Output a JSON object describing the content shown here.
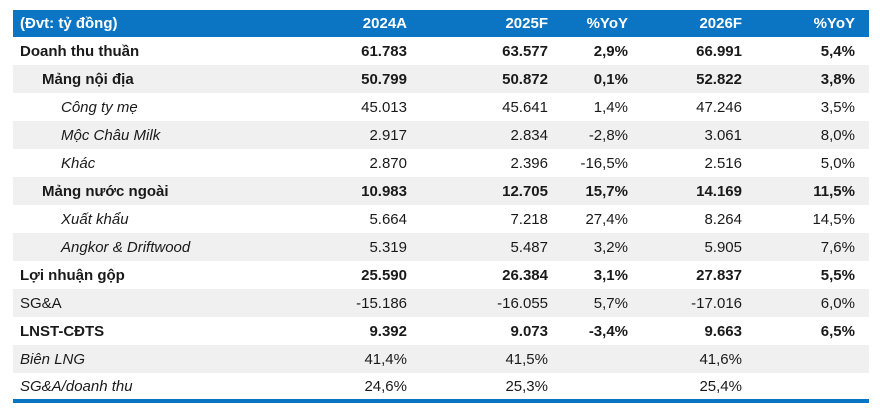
{
  "table": {
    "unit_label": "(Đvt: tỷ đồng)",
    "columns": [
      "2024A",
      "2025F",
      "%YoY",
      "2026F",
      "%YoY"
    ],
    "rows": [
      {
        "label": "Doanh thu thuần",
        "style": "bold",
        "indent": 0,
        "values": [
          "61.783",
          "63.577",
          "2,9%",
          "66.991",
          "5,4%"
        ]
      },
      {
        "label": "Mảng nội địa",
        "style": "bold",
        "indent": 1,
        "values": [
          "50.799",
          "50.872",
          "0,1%",
          "52.822",
          "3,8%"
        ]
      },
      {
        "label": "Công ty mẹ",
        "style": "italic",
        "indent": 2,
        "values": [
          "45.013",
          "45.641",
          "1,4%",
          "47.246",
          "3,5%"
        ]
      },
      {
        "label": "Mộc Châu Milk",
        "style": "italic",
        "indent": 2,
        "values": [
          "2.917",
          "2.834",
          "-2,8%",
          "3.061",
          "8,0%"
        ]
      },
      {
        "label": "Khác",
        "style": "italic",
        "indent": 2,
        "values": [
          "2.870",
          "2.396",
          "-16,5%",
          "2.516",
          "5,0%"
        ]
      },
      {
        "label": "Mảng nước ngoài",
        "style": "bold",
        "indent": 1,
        "values": [
          "10.983",
          "12.705",
          "15,7%",
          "14.169",
          "11,5%"
        ]
      },
      {
        "label": "Xuất khẩu",
        "style": "italic",
        "indent": 2,
        "values": [
          "5.664",
          "7.218",
          "27,4%",
          "8.264",
          "14,5%"
        ]
      },
      {
        "label": "Angkor & Driftwood",
        "style": "italic",
        "indent": 2,
        "values": [
          "5.319",
          "5.487",
          "3,2%",
          "5.905",
          "7,6%"
        ]
      },
      {
        "label": "Lợi nhuận gộp",
        "style": "bold",
        "indent": 0,
        "values": [
          "25.590",
          "26.384",
          "3,1%",
          "27.837",
          "5,5%"
        ]
      },
      {
        "label": "SG&A",
        "style": "regular",
        "indent": 0,
        "values": [
          "-15.186",
          "-16.055",
          "5,7%",
          "-17.016",
          "6,0%"
        ]
      },
      {
        "label": "LNST-CĐTS",
        "style": "bold",
        "indent": 0,
        "values": [
          "9.392",
          "9.073",
          "-3,4%",
          "9.663",
          "6,5%"
        ]
      },
      {
        "label": "Biên LNG",
        "style": "italic",
        "indent": 0,
        "values": [
          "41,4%",
          "41,5%",
          "",
          "41,6%",
          ""
        ]
      },
      {
        "label": "SG&A/doanh thu",
        "style": "italic",
        "indent": 0,
        "values": [
          "24,6%",
          "25,3%",
          "",
          "25,4%",
          ""
        ]
      }
    ],
    "colors": {
      "header_bg": "#0C75C3",
      "header_text": "#FFFFFF",
      "stripe_bg": "#F0F0F0",
      "row_bg": "#FFFFFF",
      "text": "#1A1A1A",
      "bottom_border": "#0C75C3"
    }
  }
}
